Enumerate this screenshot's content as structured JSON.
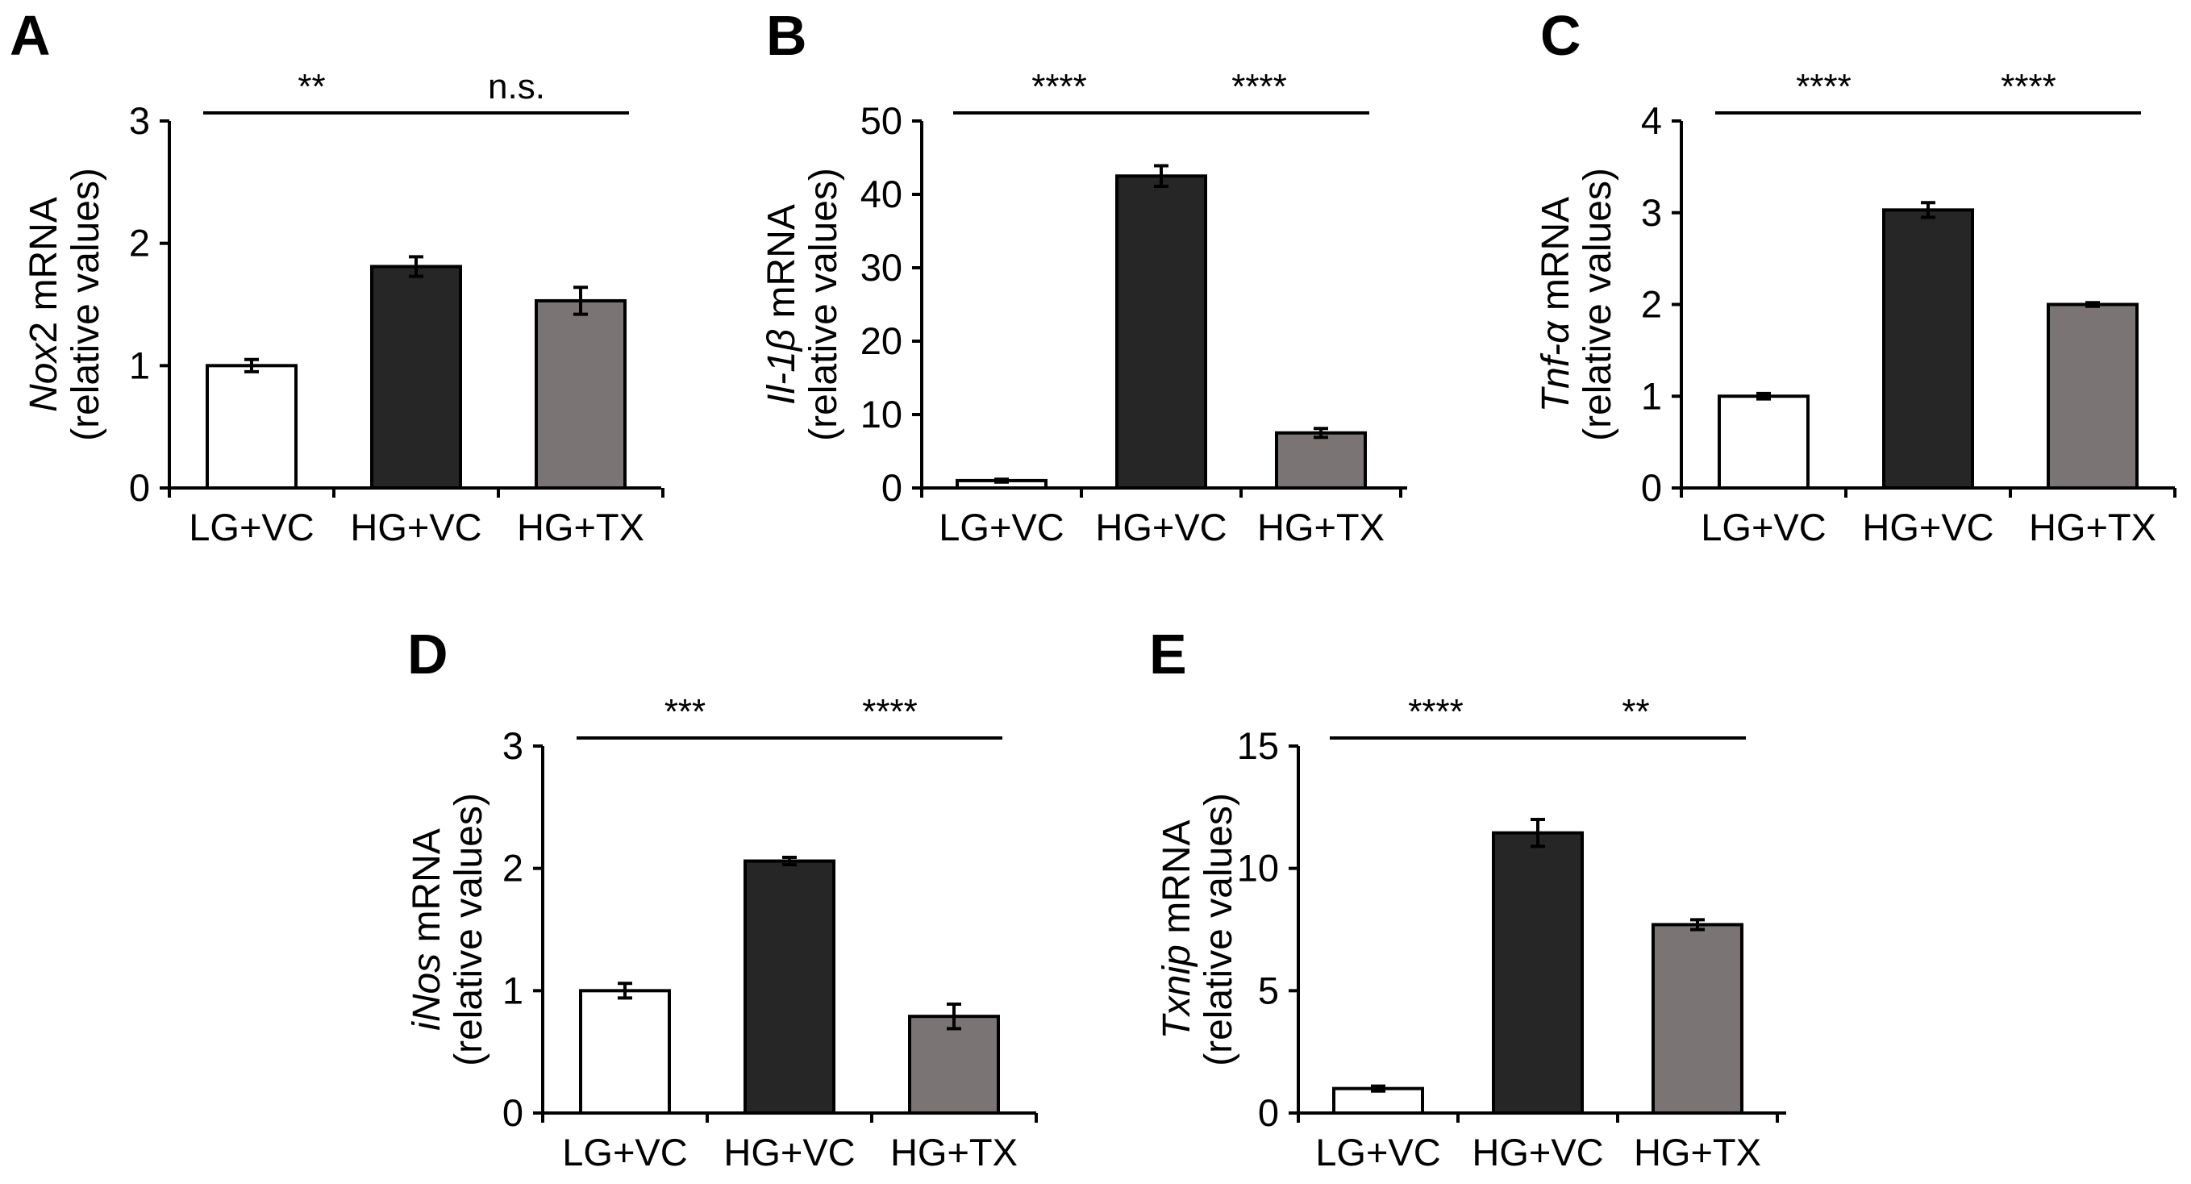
{
  "figure": {
    "categories": [
      "LG+VC",
      "HG+VC",
      "HG+TX"
    ],
    "bar_colors": [
      "#ffffff",
      "#262626",
      "#7a7474"
    ],
    "ylabel_suffix": "mRNA",
    "ylabel_sub": "(relative values)"
  },
  "chart_data": [
    {
      "type": "bar",
      "panel": "A",
      "gene": "Nox2",
      "gene_italic_part": "Nox",
      "gene_plain_part": "2",
      "ylabel": "Nox2 mRNA (relative values)",
      "categories": [
        "LG+VC",
        "HG+VC",
        "HG+TX"
      ],
      "values": [
        1.0,
        1.81,
        1.53
      ],
      "errors": [
        0.05,
        0.08,
        0.11
      ],
      "ylim": [
        0,
        3
      ],
      "yticks": [
        0,
        1,
        2,
        3
      ],
      "significance": [
        {
          "from": 0,
          "to": 1,
          "label": "**"
        },
        {
          "from": 1,
          "to": 2,
          "label": "n.s."
        }
      ]
    },
    {
      "type": "bar",
      "panel": "B",
      "gene": "Il-1β",
      "gene_italic_part": "Il-1β",
      "gene_plain_part": "",
      "ylabel": "Il-1β mRNA (relative values)",
      "categories": [
        "LG+VC",
        "HG+VC",
        "HG+TX"
      ],
      "values": [
        1.0,
        42.5,
        7.5
      ],
      "errors": [
        0.2,
        1.4,
        0.6
      ],
      "ylim": [
        0,
        50
      ],
      "yticks": [
        0,
        10,
        20,
        30,
        40,
        50
      ],
      "significance": [
        {
          "from": 0,
          "to": 1,
          "label": "****"
        },
        {
          "from": 1,
          "to": 2,
          "label": "****"
        }
      ]
    },
    {
      "type": "bar",
      "panel": "C",
      "gene": "Tnf-α",
      "gene_italic_part": "Tnf-α",
      "gene_plain_part": "",
      "ylabel": "Tnf-α mRNA (relative values)",
      "categories": [
        "LG+VC",
        "HG+VC",
        "HG+TX"
      ],
      "values": [
        1.0,
        3.03,
        2.0
      ],
      "errors": [
        0.03,
        0.08,
        0.02
      ],
      "ylim": [
        0,
        4
      ],
      "yticks": [
        0,
        1,
        2,
        3,
        4
      ],
      "significance": [
        {
          "from": 0,
          "to": 1,
          "label": "****"
        },
        {
          "from": 1,
          "to": 2,
          "label": "****"
        }
      ]
    },
    {
      "type": "bar",
      "panel": "D",
      "gene": "iNos",
      "gene_italic_part": "iNos",
      "gene_plain_part": "",
      "ylabel": "iNos mRNA (relative values)",
      "categories": [
        "LG+VC",
        "HG+VC",
        "HG+TX"
      ],
      "values": [
        1.0,
        2.06,
        0.79
      ],
      "errors": [
        0.06,
        0.03,
        0.1
      ],
      "ylim": [
        0,
        3
      ],
      "yticks": [
        0,
        1,
        2,
        3
      ],
      "significance": [
        {
          "from": 0,
          "to": 1,
          "label": "***"
        },
        {
          "from": 1,
          "to": 2,
          "label": "****"
        }
      ]
    },
    {
      "type": "bar",
      "panel": "E",
      "gene": "Txnip",
      "gene_italic_part": "Txnip",
      "gene_plain_part": "",
      "ylabel": "Txnip mRNA (relative values)",
      "categories": [
        "LG+VC",
        "HG+VC",
        "HG+TX"
      ],
      "values": [
        1.0,
        11.45,
        7.7
      ],
      "errors": [
        0.1,
        0.55,
        0.2
      ],
      "ylim": [
        0,
        15
      ],
      "yticks": [
        0,
        5,
        10,
        15
      ],
      "significance": [
        {
          "from": 0,
          "to": 1,
          "label": "****"
        },
        {
          "from": 1,
          "to": 2,
          "label": "**"
        }
      ]
    }
  ]
}
